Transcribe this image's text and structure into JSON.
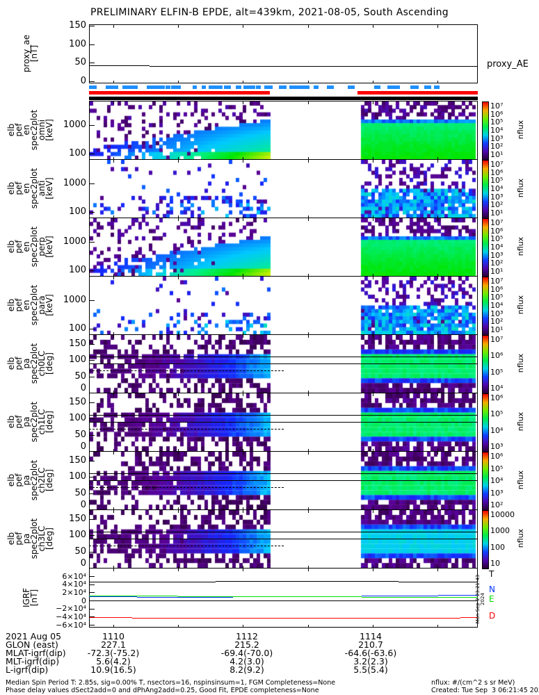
{
  "chart_data": {
    "type": "heatmap",
    "title": "PRELIMINARY ELFIN-B EPDE, alt=439km, 2021-08-05, South Ascending",
    "x_ticks": [
      "1110",
      "1112",
      "1114"
    ],
    "proxy_ae": {
      "ylabel": "proxy_ae\n[nT]",
      "legend": "proxy_AE",
      "ylim": [
        0,
        150
      ],
      "yticks": [
        "150",
        "100",
        "50",
        "0"
      ],
      "values": [
        43,
        41,
        40
      ]
    },
    "spectrograms": [
      {
        "name": "omni",
        "ylabel": "elb\npef\nen\nspec2plot\nomni\n[keV]",
        "yticks": [
          "1000",
          "100"
        ],
        "cbar": [
          "10⁷",
          "10⁶",
          "10⁵",
          "10⁴",
          "10³",
          "10²",
          "10¹"
        ],
        "cbar_label": "nflux"
      },
      {
        "name": "anti",
        "ylabel": "elb\npef\nen\nspec2plot\nanti\n[keV]",
        "yticks": [
          "1000",
          "100"
        ],
        "cbar": [
          "10⁷",
          "10⁶",
          "10⁵",
          "10⁴",
          "10³",
          "10²",
          "10¹"
        ],
        "cbar_label": "nflux"
      },
      {
        "name": "perp",
        "ylabel": "elb\npef\nen\nspec2plot\nperp\n[keV]",
        "yticks": [
          "1000",
          "100"
        ],
        "cbar": [
          "10⁷",
          "10⁶",
          "10⁵",
          "10⁴",
          "10³",
          "10²",
          "10¹"
        ],
        "cbar_label": "nflux"
      },
      {
        "name": "para",
        "ylabel": "elb\npef\nen\nspec2plot\npara\n[keV]",
        "yticks": [
          "1000",
          "100"
        ],
        "cbar": [
          "10⁷",
          "10⁶",
          "10⁵",
          "10⁴",
          "10³",
          "10²",
          "10¹"
        ],
        "cbar_label": "nflux"
      },
      {
        "name": "ch0LC",
        "ylabel": "elb\npef\npa\nspec2plot\nch0LC\n[deg]",
        "yticks": [
          "150",
          "100",
          "50",
          "0"
        ],
        "cbar": [
          "10⁷",
          "10⁶",
          "10⁵",
          "10⁴"
        ],
        "cbar_label": "nflux"
      },
      {
        "name": "ch1LC",
        "ylabel": "elb\npef\npa\nspec2plot\nch1LC\n[deg]",
        "yticks": [
          "150",
          "100",
          "50",
          "0"
        ],
        "cbar": [
          "10⁶",
          "10⁵",
          "10⁴",
          "10³"
        ],
        "cbar_label": "nflux"
      },
      {
        "name": "ch2LC",
        "ylabel": "elb\npef\npa\nspec2plot\nch2LC\n[deg]",
        "yticks": [
          "150",
          "100",
          "50",
          "0"
        ],
        "cbar": [
          "10⁶",
          "10⁵",
          "10⁴",
          "10³",
          "10²"
        ],
        "cbar_label": "nflux"
      },
      {
        "name": "ch3LC",
        "ylabel": "elb\npef\npa\nspec2plot\nch3LC\n[deg]",
        "yticks": [
          "150",
          "100",
          "50",
          "0"
        ],
        "cbar": [
          "10000",
          "1000",
          "100",
          "10"
        ],
        "cbar_label": "nflux"
      }
    ],
    "igrf": {
      "ylabel": "IGRF\n[nT]",
      "yticks": [
        "6×10⁴",
        "4×10⁴",
        "2×10⁴",
        "0",
        "−2×10⁴",
        "−4×10⁴",
        "−6×10⁴"
      ],
      "ylim": [
        -60000,
        60000
      ],
      "legend": [
        "T",
        "N",
        "E",
        "D"
      ],
      "colors": {
        "T": "#000000",
        "N": "#0033ff",
        "E": "#00dd00",
        "D": "#ff0000"
      },
      "stamp": "Mon Sep  2 23:21:43 2024"
    }
  },
  "info": {
    "labels": "2021 Aug 05\nGLON (east)\nMLAT-igrf(dip)\nMLT-igrf(dip)\nL-igrf(dip)",
    "col1": "1110\n227.1\n-72.3(-75.2)\n5.6(4.2)\n10.9(16.5)",
    "col2": "1112\n215.2\n-69.4(-70.0)\n4.2(3.0)\n8.2(9.2)",
    "col3": "1114\n210.7\n-64.6(-63.6)\n3.2(2.3)\n5.5(5.4)"
  },
  "footer": {
    "left": "Median Spin Period T: 2.85s, sig=0.00% T, nsectors=16, nspinsinsum=1, FGM Completeness=None\nPhase delay values dSect2add=0 and dPhAng2add=0.25, Good Fit, EPDE completeness=None",
    "right": "nflux: #/(cm^2 s sr MeV)\nCreated: Tue Sep  3 06:21:45 2024"
  }
}
